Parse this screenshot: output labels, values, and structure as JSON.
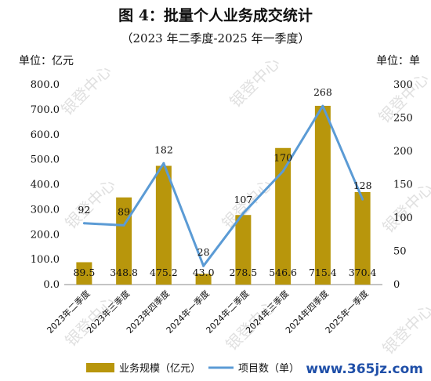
{
  "chart_data": {
    "type": "bar",
    "title": "图 4：批量个人业务成交统计",
    "subtitle": "（2023 年二季度-2025 年一季度）",
    "left_unit": "单位：亿元",
    "right_unit": "单位：单",
    "categories": [
      "2023年二季度",
      "2023年三季度",
      "2023年四季度",
      "2024年一季度",
      "2024年二季度",
      "2024年三季度",
      "2024年四季度",
      "2025年一季度"
    ],
    "y_left": {
      "ticks": [
        "0.0",
        "100.0",
        "200.0",
        "300.0",
        "400.0",
        "500.0",
        "600.0",
        "700.0",
        "800.0"
      ],
      "ylim": [
        0,
        800
      ]
    },
    "y_right": {
      "ticks": [
        "0",
        "50",
        "100",
        "150",
        "200",
        "250",
        "300"
      ],
      "ylim": [
        0,
        300
      ]
    },
    "series": [
      {
        "name": "业务规模（亿元）",
        "type": "bar",
        "axis": "left",
        "color": "#b8960c",
        "values": [
          89.5,
          348.8,
          475.2,
          43.0,
          278.5,
          546.6,
          715.4,
          370.4
        ],
        "labels": [
          "89.5",
          "348.8",
          "475.2",
          "43.0",
          "278.5",
          "546.6",
          "715.4",
          "370.4"
        ]
      },
      {
        "name": "项目数（单）",
        "type": "line",
        "axis": "right",
        "color": "#5b9bd5",
        "values": [
          92,
          89,
          182,
          28,
          107,
          170,
          268,
          128
        ],
        "labels": [
          "92",
          "89",
          "182",
          "28",
          "107",
          "170",
          "268",
          "128"
        ]
      }
    ],
    "grid": false,
    "legend": "bottom"
  },
  "watermark": "银登中心",
  "site_mark": "www.365jz.com"
}
